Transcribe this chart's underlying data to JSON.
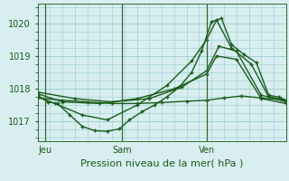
{
  "background_color": "#d8eef0",
  "grid_color": "#99cccc",
  "line_color": "#1a5c1a",
  "marker_color": "#1a5c1a",
  "title": "Pression niveau de la mer( hPa )",
  "ylim": [
    1016.4,
    1020.6
  ],
  "xlim": [
    0.0,
    1.0
  ],
  "day_labels": [
    "Jeu",
    "Sam",
    "Ven"
  ],
  "day_positions": [
    0.03,
    0.34,
    0.68
  ],
  "series": [
    {
      "x": [
        0.0,
        0.04,
        0.08,
        0.13,
        0.18,
        0.23,
        0.28,
        0.33,
        0.37,
        0.42,
        0.47,
        0.52,
        0.57,
        0.62,
        0.66,
        0.7,
        0.74,
        0.78,
        0.83,
        0.88,
        0.93,
        0.97,
        1.0
      ],
      "y": [
        1017.8,
        1017.6,
        1017.55,
        1017.2,
        1016.85,
        1016.72,
        1016.7,
        1016.78,
        1017.05,
        1017.3,
        1017.5,
        1017.75,
        1018.05,
        1018.5,
        1019.15,
        1020.05,
        1020.15,
        1019.35,
        1019.05,
        1018.8,
        1017.8,
        1017.75,
        1017.65
      ]
    },
    {
      "x": [
        0.0,
        0.07,
        0.18,
        0.28,
        0.4,
        0.52,
        0.62,
        0.68,
        0.72,
        0.78,
        0.86,
        0.93,
        1.0
      ],
      "y": [
        1017.75,
        1017.55,
        1017.2,
        1017.05,
        1017.5,
        1018.1,
        1018.85,
        1019.5,
        1020.1,
        1019.25,
        1018.75,
        1017.75,
        1017.6
      ]
    },
    {
      "x": [
        0.0,
        0.1,
        0.25,
        0.4,
        0.55,
        0.68,
        0.72,
        0.8,
        0.9,
        1.0
      ],
      "y": [
        1017.85,
        1017.6,
        1017.55,
        1017.7,
        1018.0,
        1018.45,
        1019.0,
        1018.9,
        1017.7,
        1017.55
      ]
    },
    {
      "x": [
        0.0,
        0.15,
        0.3,
        0.45,
        0.58,
        0.68,
        0.73,
        0.8,
        0.9,
        1.0
      ],
      "y": [
        1017.9,
        1017.7,
        1017.6,
        1017.7,
        1018.05,
        1018.55,
        1019.3,
        1019.15,
        1017.8,
        1017.65
      ]
    },
    {
      "x": [
        0.0,
        0.1,
        0.2,
        0.3,
        0.4,
        0.5,
        0.6,
        0.68,
        0.75,
        0.82,
        0.9,
        1.0
      ],
      "y": [
        1017.72,
        1017.65,
        1017.6,
        1017.55,
        1017.55,
        1017.58,
        1017.62,
        1017.65,
        1017.72,
        1017.78,
        1017.72,
        1017.65
      ]
    }
  ],
  "yticks": [
    1017,
    1018,
    1019,
    1020
  ],
  "ytick_fontsize": 7,
  "xtick_fontsize": 7,
  "xlabel_fontsize": 8,
  "figsize": [
    3.2,
    2.0
  ],
  "dpi": 100
}
